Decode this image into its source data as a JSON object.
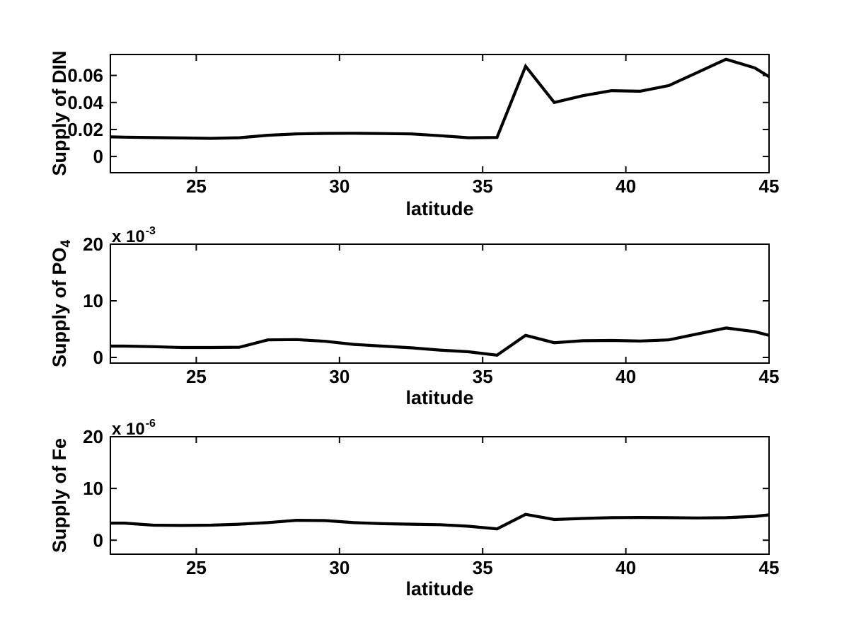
{
  "figure": {
    "background_color": "#ffffff",
    "axis_color": "#000000",
    "line_color": "#000000"
  },
  "chart_data": [
    {
      "type": "line",
      "title": "",
      "xlabel": "latitude",
      "ylabel": "Supply of DIN",
      "ylabel_subscript": "",
      "scale_label_base": "",
      "scale_label_exponent": "",
      "xlim": [
        22,
        45
      ],
      "ylim": [
        -0.012,
        0.0755
      ],
      "xticks": [
        25,
        30,
        35,
        40,
        45
      ],
      "xtick_labels": [
        "25",
        "30",
        "35",
        "40",
        "45"
      ],
      "yticks": [
        0,
        0.02,
        0.04,
        0.06
      ],
      "ytick_labels": [
        "0",
        "0.02",
        "0.04",
        "0.06"
      ],
      "grid": false,
      "legend": null,
      "x": [
        22,
        22.5,
        23.5,
        24.5,
        25.5,
        26.5,
        27.5,
        28.5,
        29.5,
        30.5,
        31.5,
        32.5,
        33.5,
        34.5,
        35.5,
        36.5,
        37.5,
        38.5,
        39.5,
        40.5,
        41.5,
        42.5,
        43.5,
        44.5,
        45
      ],
      "y": [
        0.0145,
        0.0143,
        0.014,
        0.0137,
        0.0134,
        0.0139,
        0.0157,
        0.0167,
        0.0171,
        0.0172,
        0.017,
        0.0167,
        0.0154,
        0.0139,
        0.0141,
        0.0668,
        0.04,
        0.045,
        0.0487,
        0.0483,
        0.0525,
        0.0622,
        0.072,
        0.0656,
        0.0591
      ]
    },
    {
      "type": "line",
      "title": "",
      "xlabel": "latitude",
      "ylabel": "Supply of PO",
      "ylabel_subscript": "4",
      "scale_label_base": "x 10",
      "scale_label_exponent": "-3",
      "xlim": [
        22,
        45
      ],
      "ylim": [
        -1,
        20
      ],
      "xticks": [
        25,
        30,
        35,
        40,
        45
      ],
      "xtick_labels": [
        "25",
        "30",
        "35",
        "40",
        "45"
      ],
      "yticks": [
        0,
        10,
        20
      ],
      "ytick_labels": [
        "0",
        "10",
        "20"
      ],
      "grid": false,
      "legend": null,
      "x": [
        22,
        22.5,
        23.5,
        24.5,
        25.5,
        26.5,
        27.5,
        28.5,
        29.5,
        30.5,
        31.5,
        32.5,
        33.5,
        34.5,
        35.5,
        36.5,
        37.5,
        38.5,
        39.5,
        40.5,
        41.5,
        42.5,
        43.5,
        44.5,
        45
      ],
      "y": [
        2.0,
        2.0,
        1.9,
        1.75,
        1.75,
        1.8,
        3.1,
        3.15,
        2.85,
        2.3,
        2.0,
        1.7,
        1.3,
        1.0,
        0.4,
        3.9,
        2.6,
        2.95,
        3.0,
        2.9,
        3.1,
        4.15,
        5.2,
        4.55,
        3.9
      ]
    },
    {
      "type": "line",
      "title": "",
      "xlabel": "latitude",
      "ylabel": "Supply of Fe",
      "ylabel_subscript": "",
      "scale_label_base": "x 10",
      "scale_label_exponent": "-6",
      "xlim": [
        22,
        45
      ],
      "ylim": [
        -2.7,
        20
      ],
      "xticks": [
        25,
        30,
        35,
        40,
        45
      ],
      "xtick_labels": [
        "25",
        "30",
        "35",
        "40",
        "45"
      ],
      "yticks": [
        0,
        10,
        20
      ],
      "ytick_labels": [
        "0",
        "10",
        "20"
      ],
      "grid": false,
      "legend": null,
      "x": [
        22,
        22.5,
        23.5,
        24.5,
        25.5,
        26.5,
        27.5,
        28.5,
        29.5,
        30.5,
        31.5,
        32.5,
        33.5,
        34.5,
        35.5,
        36.5,
        37.5,
        38.5,
        39.5,
        40.5,
        41.5,
        42.5,
        43.5,
        44.5,
        45
      ],
      "y": [
        3.3,
        3.3,
        2.9,
        2.85,
        2.9,
        3.1,
        3.4,
        3.85,
        3.8,
        3.4,
        3.2,
        3.1,
        3.0,
        2.7,
        2.2,
        5.0,
        4.0,
        4.2,
        4.35,
        4.4,
        4.35,
        4.3,
        4.35,
        4.6,
        4.9
      ]
    }
  ]
}
